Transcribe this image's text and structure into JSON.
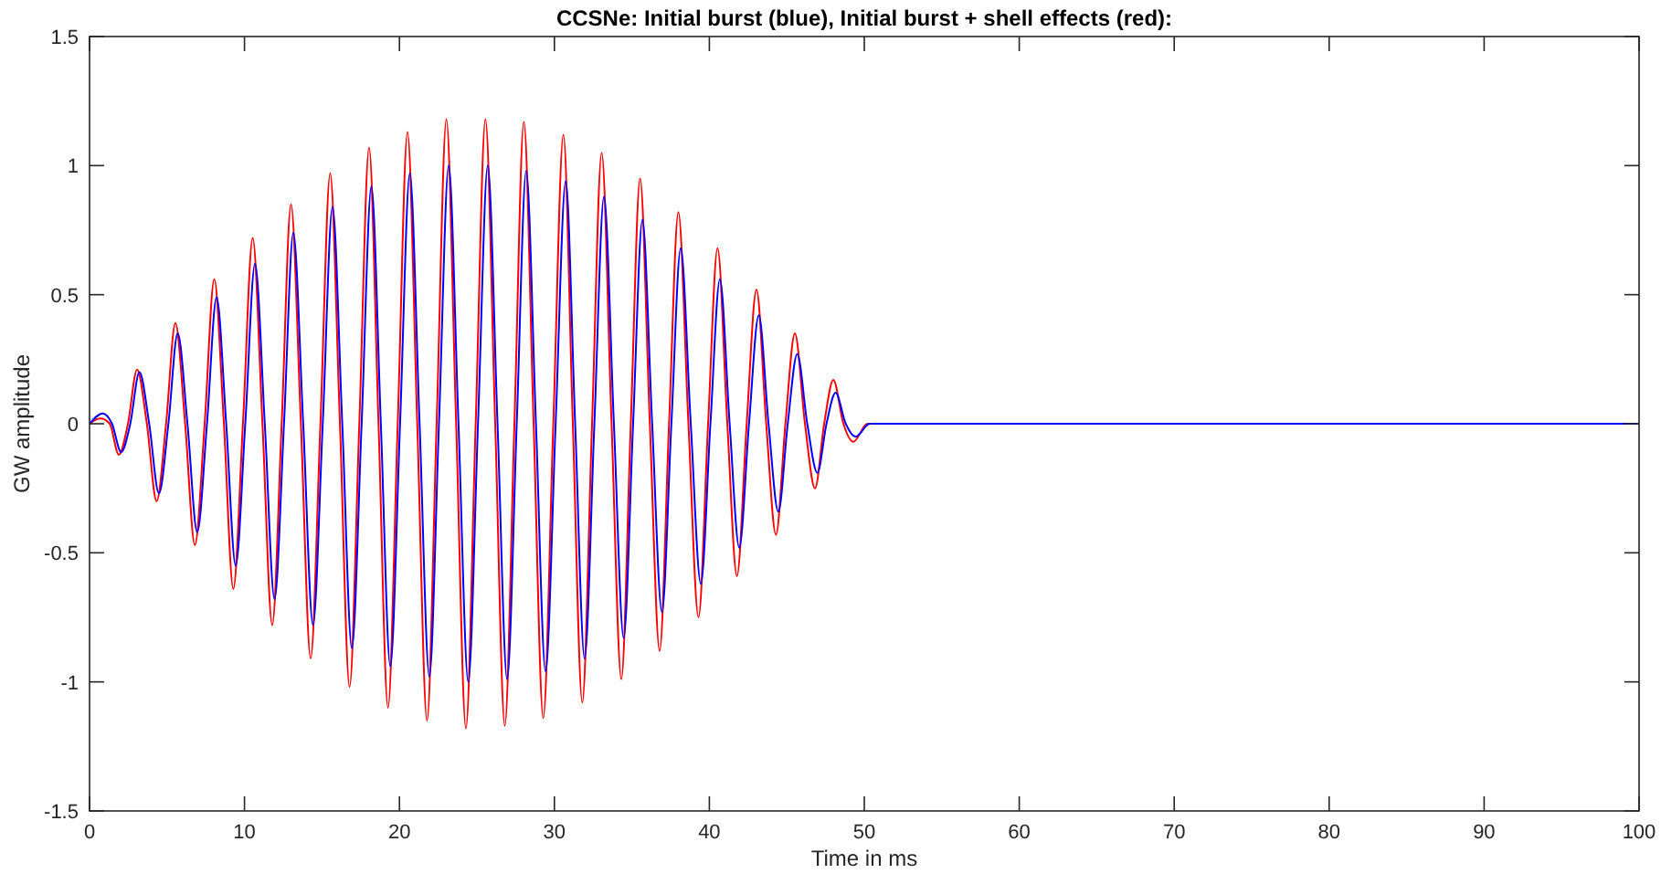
{
  "chart_data": {
    "type": "line",
    "title": "CCSNe: Initial burst (blue), Initial burst + shell effects (red):",
    "xlabel": "Time in ms",
    "ylabel": "GW amplitude",
    "xlim": [
      0,
      100
    ],
    "ylim": [
      -1.5,
      1.5
    ],
    "xticks": [
      0,
      10,
      20,
      30,
      40,
      50,
      60,
      70,
      80,
      90,
      100
    ],
    "yticks": [
      -1.5,
      -1,
      -0.5,
      0,
      0.5,
      1,
      1.5
    ],
    "grid": false,
    "marker": "none",
    "line_style": "solid",
    "series": [
      {
        "color": "#ff0000",
        "x": [
          0,
          0.7,
          1.3,
          1.89,
          2.48,
          3.07,
          3.7,
          4.33,
          4.94,
          5.54,
          6.17,
          6.8,
          7.43,
          8.05,
          8.67,
          9.28,
          9.9,
          10.53,
          11.16,
          11.79,
          12.4,
          13.0,
          13.64,
          14.27,
          14.9,
          15.53,
          16.16,
          16.78,
          17.41,
          18.04,
          18.65,
          19.26,
          19.89,
          20.52,
          21.15,
          21.78,
          22.4,
          23.03,
          23.66,
          24.29,
          24.92,
          25.55,
          26.18,
          26.8,
          27.42,
          28.03,
          28.66,
          29.28,
          29.93,
          30.58,
          31.19,
          31.8,
          32.43,
          33.05,
          33.69,
          34.32,
          34.93,
          35.53,
          36.16,
          36.79,
          37.4,
          38.0,
          38.65,
          39.3,
          39.92,
          40.53,
          41.16,
          41.78,
          42.41,
          43.04,
          43.67,
          44.3,
          44.91,
          45.52,
          46.17,
          46.82,
          47.41,
          48.0,
          48.65,
          49.29,
          50.2,
          100
        ],
        "values": [
          0,
          0.02,
          0,
          -0.12,
          0,
          0.21,
          0,
          -0.3,
          0,
          0.39,
          0,
          -0.47,
          0,
          0.56,
          0,
          -0.64,
          0,
          0.72,
          0,
          -0.78,
          0,
          0.85,
          0,
          -0.91,
          0,
          0.97,
          0,
          -1.02,
          0,
          1.07,
          0,
          -1.1,
          0,
          1.13,
          0,
          -1.15,
          0,
          1.18,
          0,
          -1.18,
          0,
          1.18,
          0,
          -1.17,
          0,
          1.17,
          0,
          -1.14,
          0,
          1.12,
          0,
          -1.08,
          0,
          1.05,
          0,
          -0.99,
          0,
          0.95,
          0,
          -0.88,
          0,
          0.82,
          0,
          -0.75,
          0,
          0.68,
          0,
          -0.59,
          0,
          0.52,
          0,
          -0.43,
          0,
          0.35,
          0,
          -0.25,
          0,
          0.17,
          0,
          -0.07,
          0,
          0
        ]
      },
      {
        "color": "#0000ff",
        "x": [
          0,
          0.85,
          1.45,
          2.04,
          2.63,
          3.22,
          3.85,
          4.48,
          5.09,
          5.69,
          6.32,
          6.95,
          7.58,
          8.2,
          8.82,
          9.43,
          10.05,
          10.68,
          11.31,
          11.94,
          12.55,
          13.15,
          13.79,
          14.42,
          15.05,
          15.68,
          16.31,
          16.93,
          17.56,
          18.19,
          18.8,
          19.41,
          20.04,
          20.67,
          21.3,
          21.93,
          22.55,
          23.18,
          23.81,
          24.44,
          25.07,
          25.7,
          26.33,
          26.95,
          27.57,
          28.18,
          28.81,
          29.43,
          30.08,
          30.73,
          31.34,
          31.95,
          32.58,
          33.2,
          33.84,
          34.47,
          35.08,
          35.68,
          36.31,
          36.94,
          37.55,
          38.15,
          38.8,
          39.45,
          40.07,
          40.68,
          41.31,
          41.93,
          42.56,
          43.19,
          43.82,
          44.45,
          45.06,
          45.67,
          46.32,
          46.97,
          47.56,
          48.15,
          48.8,
          49.44,
          50.35,
          100
        ],
        "values": [
          0,
          0.04,
          0,
          -0.11,
          0,
          0.2,
          0,
          -0.27,
          0,
          0.35,
          0,
          -0.42,
          0,
          0.49,
          0,
          -0.55,
          0,
          0.62,
          0,
          -0.68,
          0,
          0.74,
          0,
          -0.78,
          0,
          0.84,
          0,
          -0.87,
          0,
          0.92,
          0,
          -0.94,
          0,
          0.97,
          0,
          -0.98,
          0,
          1.0,
          0,
          -1.0,
          0,
          1.0,
          0,
          -0.99,
          0,
          0.98,
          0,
          -0.96,
          0,
          0.94,
          0,
          -0.91,
          0,
          0.88,
          0,
          -0.83,
          0,
          0.79,
          0,
          -0.73,
          0,
          0.68,
          0,
          -0.62,
          0,
          0.56,
          0,
          -0.48,
          0,
          0.42,
          0,
          -0.34,
          0,
          0.27,
          0,
          -0.19,
          0,
          0.12,
          0,
          -0.05,
          0,
          0
        ]
      }
    ]
  }
}
